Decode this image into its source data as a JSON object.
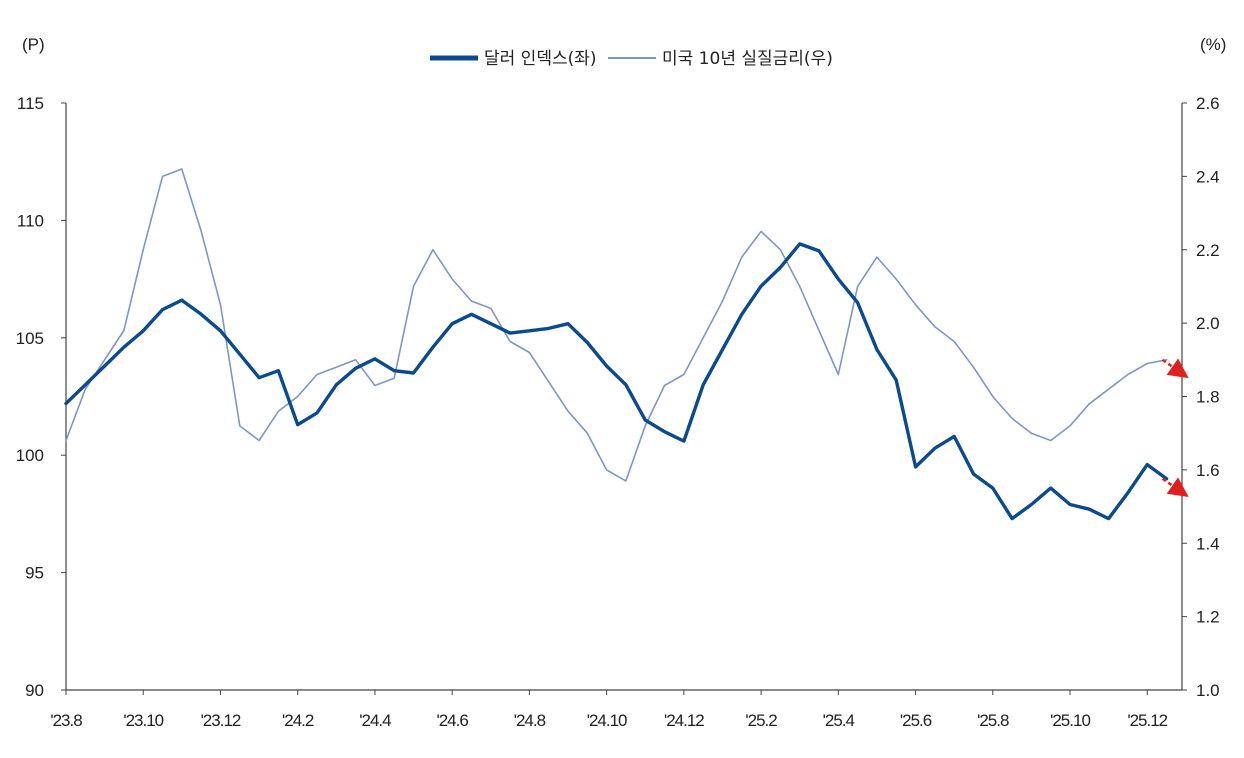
{
  "chart_data": {
    "type": "line",
    "left_unit": "(P)",
    "right_unit": "(%)",
    "x_labels": [
      "'23.8",
      "'23.10",
      "'23.12",
      "'24.2",
      "'24.4",
      "'24.6",
      "'24.8",
      "'24.10",
      "'24.12",
      "'25.2",
      "'25.4",
      "'25.6",
      "'25.8",
      "'25.10",
      "'25.12"
    ],
    "y_left": {
      "min": 90,
      "max": 115,
      "ticks": [
        "90",
        "95",
        "100",
        "105",
        "110",
        "115"
      ]
    },
    "y_right": {
      "min": 1.0,
      "max": 2.6,
      "ticks": [
        "1.0",
        "1.2",
        "1.4",
        "1.6",
        "1.8",
        "2.0",
        "2.2",
        "2.4",
        "2.6"
      ]
    },
    "grid": false,
    "legend_position": "top-center",
    "series": [
      {
        "name": "달러 인덱스(좌)",
        "axis": "left",
        "color": "#0b4a8f",
        "x": [
          0,
          0.25,
          0.5,
          0.75,
          1,
          1.25,
          1.5,
          1.75,
          2,
          2.25,
          2.5,
          2.75,
          3,
          3.25,
          3.5,
          3.75,
          4,
          4.25,
          4.5,
          4.75,
          5,
          5.25,
          5.5,
          5.75,
          6,
          6.25,
          6.5,
          6.75,
          7,
          7.25,
          7.5,
          7.75,
          8,
          8.25,
          8.5,
          8.75,
          9,
          9.25,
          9.5,
          9.75,
          10,
          10.25,
          10.5,
          10.75,
          11,
          11.25,
          11.5,
          11.75,
          12,
          12.25,
          12.5,
          12.75,
          13,
          13.25,
          13.5,
          13.75,
          14,
          14.25
        ],
        "values": [
          102.2,
          103.0,
          103.8,
          104.6,
          105.3,
          106.2,
          106.6,
          106.0,
          105.3,
          104.3,
          103.3,
          103.6,
          101.3,
          101.8,
          103.0,
          103.7,
          104.1,
          103.6,
          103.5,
          104.6,
          105.6,
          106.0,
          105.6,
          105.2,
          105.3,
          105.4,
          105.6,
          104.8,
          103.8,
          103.0,
          101.5,
          101.0,
          100.6,
          103.0,
          104.5,
          106.0,
          107.2,
          108.0,
          109.0,
          108.7,
          107.5,
          106.5,
          104.5,
          103.2,
          99.5,
          100.3,
          100.8,
          99.2,
          98.6,
          97.3,
          97.9,
          98.6,
          97.9,
          97.7,
          97.3,
          98.4,
          99.6,
          99.0
        ]
      },
      {
        "name": "미국 10년 실질금리(우)",
        "axis": "right",
        "color": "#7f96c4",
        "x": [
          0,
          0.25,
          0.5,
          0.75,
          1,
          1.25,
          1.5,
          1.75,
          2,
          2.25,
          2.5,
          2.75,
          3,
          3.25,
          3.5,
          3.75,
          4,
          4.25,
          4.5,
          4.75,
          5,
          5.25,
          5.5,
          5.75,
          6,
          6.25,
          6.5,
          6.75,
          7,
          7.25,
          7.5,
          7.75,
          8,
          8.25,
          8.5,
          8.75,
          9,
          9.25,
          9.5,
          9.75,
          10,
          10.25,
          10.5,
          10.75,
          11,
          11.25,
          11.5,
          11.75,
          12,
          12.25,
          12.5,
          12.75,
          13,
          13.25,
          13.5,
          13.75,
          14,
          14.25
        ],
        "values": [
          1.68,
          1.82,
          1.9,
          1.98,
          2.2,
          2.4,
          2.42,
          2.25,
          2.05,
          1.72,
          1.68,
          1.76,
          1.8,
          1.86,
          1.88,
          1.9,
          1.83,
          1.85,
          2.1,
          2.2,
          2.12,
          2.06,
          2.04,
          1.95,
          1.92,
          1.84,
          1.76,
          1.7,
          1.6,
          1.57,
          1.72,
          1.83,
          1.86,
          1.96,
          2.06,
          2.18,
          2.25,
          2.2,
          2.1,
          1.98,
          1.86,
          2.1,
          2.18,
          2.12,
          2.05,
          1.99,
          1.95,
          1.88,
          1.8,
          1.74,
          1.7,
          1.68,
          1.72,
          1.78,
          1.82,
          1.86,
          1.89,
          1.9
        ]
      }
    ]
  }
}
